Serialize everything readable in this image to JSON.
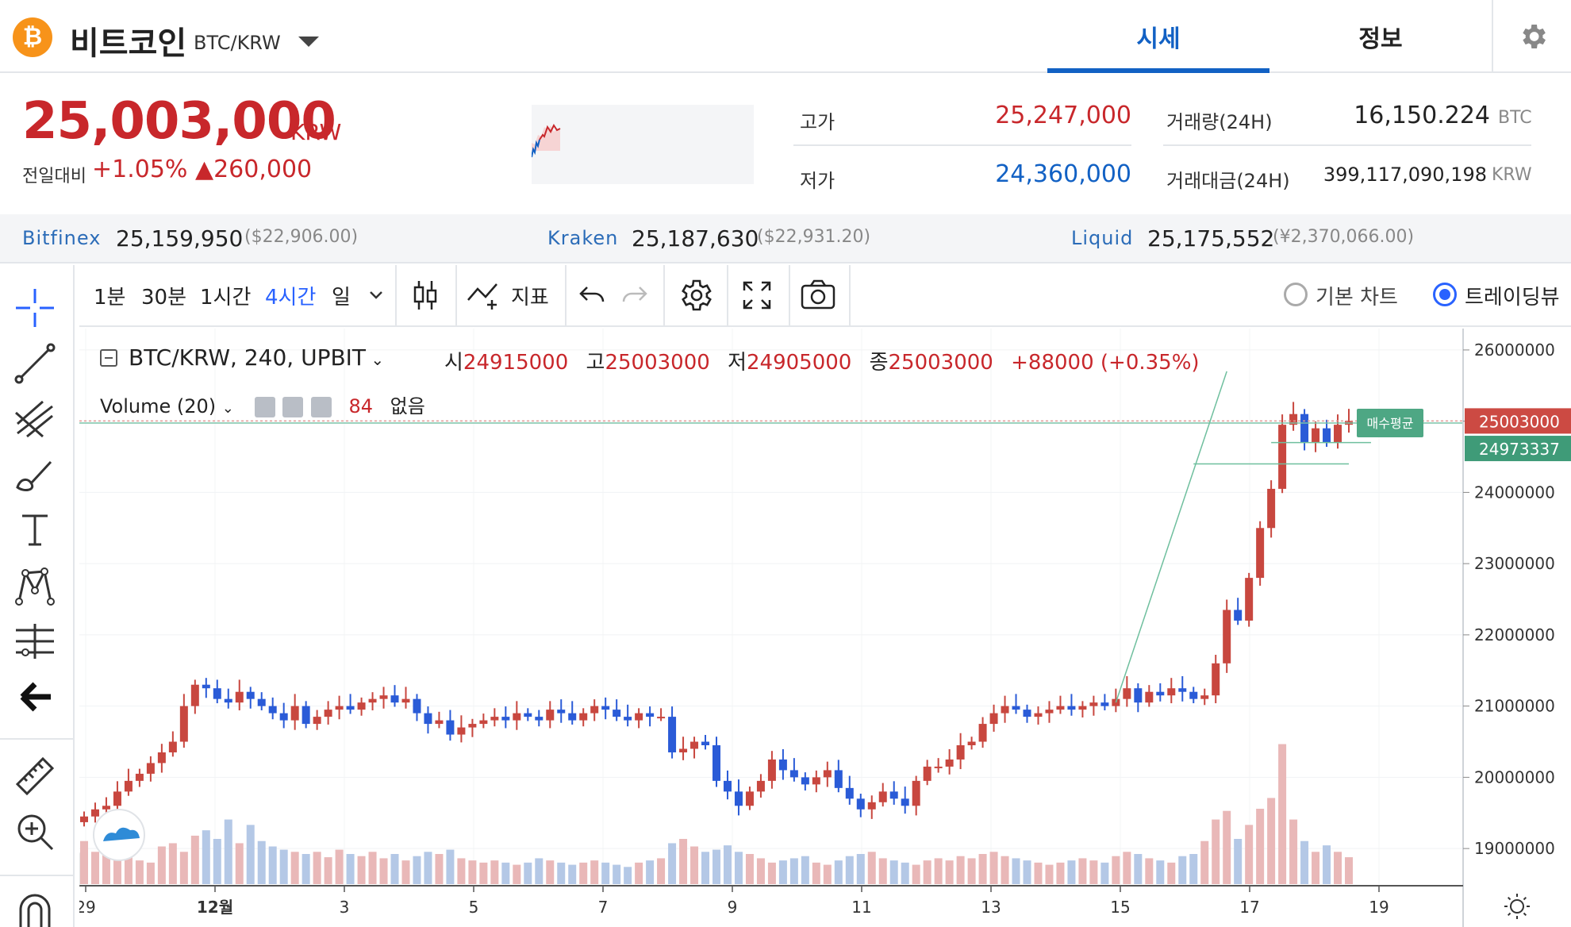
{
  "header": {
    "coin_symbol": "₿",
    "coin_name": "비트코인",
    "coin_pair": "BTC/KRW",
    "tabs": [
      {
        "label": "시세",
        "active": true
      },
      {
        "label": "정보",
        "active": false
      }
    ]
  },
  "price": {
    "current": "25,003,000",
    "unit": "KRW",
    "change_label": "전일대비",
    "change_pct": "+1.05%",
    "change_amt": "▲260,000"
  },
  "stats": {
    "high_label": "고가",
    "high": "25,247,000",
    "low_label": "저가",
    "low": "24,360,000",
    "volume_label": "거래량(24H)",
    "volume": "16,150.224",
    "volume_unit": "BTC",
    "turnover_label": "거래대금(24H)",
    "turnover": "399,117,090,198",
    "turnover_unit": "KRW"
  },
  "exchanges": [
    {
      "name": "Bitfinex",
      "price": "25,159,950",
      "foreign": "($22,906.00)"
    },
    {
      "name": "Kraken",
      "price": "25,187,630",
      "foreign": "($22,931.20)"
    },
    {
      "name": "Liquid",
      "price": "25,175,552",
      "foreign": "(¥2,370,066.00)"
    }
  ],
  "toolbar": {
    "intervals": [
      "1분",
      "30분",
      "1시간",
      "4시간",
      "일"
    ],
    "active_interval": "4시간",
    "indicators_label": "지표",
    "chart_mode_basic": "기본 차트",
    "chart_mode_tv": "트레이딩뷰",
    "selected_mode": "트레이딩뷰"
  },
  "legend": {
    "title": "BTC/KRW, 240, UPBIT",
    "o_label": "시",
    "o": "24915000",
    "h_label": "고",
    "h": "25003000",
    "l_label": "저",
    "l": "24905000",
    "c_label": "종",
    "c": "25003000",
    "change": "+88000 (+0.35%)",
    "volume_label": "Volume (20)",
    "volume_value": "84",
    "volume_extra": "없음"
  },
  "chart_data": {
    "type": "candlestick",
    "symbol": "BTC/KRW",
    "interval": "240",
    "exchange": "UPBIT",
    "ylim": [
      18500000,
      26300000
    ],
    "y_ticks": [
      19000000,
      20000000,
      21000000,
      22000000,
      23000000,
      24000000,
      25000000,
      26000000
    ],
    "x_tick_labels": [
      "29",
      "12월",
      "3",
      "5",
      "7",
      "9",
      "11",
      "13",
      "15",
      "17",
      "19"
    ],
    "last_price_label": "25003000",
    "avg_buy_price": "24973337",
    "avg_buy_label": "매수평균",
    "closes": [
      19450000,
      19550000,
      19600000,
      19800000,
      19950000,
      20050000,
      20200000,
      20350000,
      20500000,
      21000000,
      21300000,
      21250000,
      21100000,
      21050000,
      21200000,
      21100000,
      21000000,
      20900000,
      20800000,
      21000000,
      20750000,
      20850000,
      20950000,
      21000000,
      20950000,
      21050000,
      21100000,
      21150000,
      21050000,
      21100000,
      20900000,
      20750000,
      20800000,
      20600000,
      20700000,
      20750000,
      20800000,
      20850000,
      20800000,
      20900000,
      20850000,
      20800000,
      20950000,
      20900000,
      20800000,
      20900000,
      21000000,
      20950000,
      20850000,
      20800000,
      20900000,
      20850000,
      20850000,
      20350000,
      20400000,
      20500000,
      20450000,
      19950000,
      19800000,
      19600000,
      19800000,
      19950000,
      20250000,
      20100000,
      20000000,
      19900000,
      20000000,
      20100000,
      19850000,
      19700000,
      19550000,
      19650000,
      19800000,
      19700000,
      19600000,
      19950000,
      20150000,
      20150000,
      20250000,
      20450000,
      20500000,
      20750000,
      20900000,
      21000000,
      20950000,
      20850000,
      20900000,
      20950000,
      21000000,
      20950000,
      21000000,
      21050000,
      21000000,
      21100000,
      21250000,
      21050000,
      21200000,
      21150000,
      21250000,
      21200000,
      21100000,
      21150000,
      21600000,
      22350000,
      22200000,
      22800000,
      23500000,
      24050000,
      24950000,
      25100000,
      24700000,
      24900000,
      24700000,
      24950000,
      25003000
    ],
    "volumes": [
      40,
      30,
      28,
      30,
      25,
      22,
      20,
      35,
      38,
      30,
      45,
      50,
      42,
      60,
      38,
      55,
      40,
      35,
      32,
      30,
      28,
      30,
      25,
      32,
      28,
      26,
      30,
      24,
      28,
      22,
      26,
      30,
      28,
      32,
      24,
      22,
      20,
      22,
      20,
      18,
      20,
      24,
      22,
      20,
      18,
      20,
      22,
      20,
      18,
      16,
      20,
      22,
      24,
      38,
      42,
      35,
      30,
      32,
      36,
      30,
      28,
      24,
      20,
      22,
      24,
      26,
      20,
      18,
      22,
      26,
      28,
      30,
      24,
      22,
      20,
      18,
      22,
      24,
      22,
      26,
      24,
      28,
      30,
      26,
      24,
      22,
      20,
      18,
      20,
      22,
      24,
      22,
      20,
      26,
      30,
      28,
      24,
      22,
      20,
      26,
      28,
      40,
      60,
      68,
      42,
      55,
      70,
      80,
      130,
      60,
      40,
      30,
      36,
      30,
      25
    ]
  }
}
